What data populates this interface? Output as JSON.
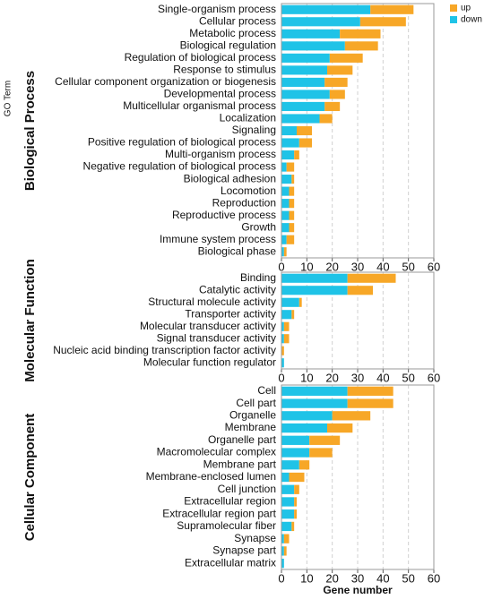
{
  "chart_data": [
    {
      "type": "bar",
      "orientation": "horizontal",
      "title": "Biological Process",
      "legend_title": "GO Term",
      "categories": [
        "Single-organism process",
        "Cellular process",
        "Metabolic process",
        "Biological regulation",
        "Regulation of biological process",
        "Response to stimulus",
        "Cellular component organization or biogenesis",
        "Developmental process",
        "Multicellular organismal process",
        "Localization",
        "Signaling",
        "Positive regulation of biological process",
        "Multi-organism process",
        "Negative regulation of biological process",
        "Biological adhesion",
        "Locomotion",
        "Reproduction",
        "Reproductive process",
        "Growth",
        "Immune system process",
        "Biological phase"
      ],
      "series": [
        {
          "name": "up",
          "color": "#f7a727",
          "values": [
            17,
            18,
            16,
            13,
            13,
            10,
            9,
            6,
            6,
            5,
            6,
            5,
            2,
            3,
            1,
            2,
            2,
            2,
            2,
            3,
            1
          ]
        },
        {
          "name": "down",
          "color": "#1fc3e7",
          "values": [
            35,
            31,
            23,
            25,
            19,
            18,
            17,
            19,
            17,
            15,
            6,
            7,
            5,
            2,
            4,
            3,
            3,
            3,
            3,
            2,
            1
          ]
        }
      ],
      "xlim": [
        0,
        60
      ],
      "xticks": [
        0,
        10,
        20,
        30,
        40,
        50,
        60
      ],
      "grid": true
    },
    {
      "type": "bar",
      "orientation": "horizontal",
      "title": "Molecular Function",
      "categories": [
        "Binding",
        "Catalytic activity",
        "Structural molecule activity",
        "Transporter activity",
        "Molecular transducer activity",
        "Signal transducer activity",
        "Nucleic acid binding transcription factor activity",
        "Molecular function regulator"
      ],
      "series": [
        {
          "name": "up",
          "color": "#f7a727",
          "values": [
            19,
            10,
            1,
            1,
            2,
            2,
            1,
            0
          ]
        },
        {
          "name": "down",
          "color": "#1fc3e7",
          "values": [
            26,
            26,
            7,
            4,
            1,
            1,
            0,
            1
          ]
        }
      ],
      "xlim": [
        0,
        60
      ],
      "xticks": [
        0,
        10,
        20,
        30,
        40,
        50,
        60
      ],
      "grid": true
    },
    {
      "type": "bar",
      "orientation": "horizontal",
      "title": "Cellular Component",
      "x_label": "Gene number",
      "categories": [
        "Cell",
        "Cell part",
        "Organelle",
        "Membrane",
        "Organelle part",
        "Macromolecular complex",
        "Membrane part",
        "Membrane-enclosed lumen",
        "Cell junction",
        "Extracellular region",
        "Extracellular region part",
        "Supramolecular fiber",
        "Synapse",
        "Synapse part",
        "Extracellular matrix"
      ],
      "series": [
        {
          "name": "up",
          "color": "#f7a727",
          "values": [
            18,
            18,
            15,
            10,
            12,
            9,
            4,
            6,
            2,
            1,
            1,
            1,
            2,
            1,
            0
          ]
        },
        {
          "name": "down",
          "color": "#1fc3e7",
          "values": [
            26,
            26,
            20,
            18,
            11,
            11,
            7,
            3,
            5,
            5,
            5,
            4,
            1,
            1,
            1
          ]
        }
      ],
      "xlim": [
        0,
        60
      ],
      "xticks": [
        0,
        10,
        20,
        30,
        40,
        50,
        60
      ],
      "grid": true
    }
  ]
}
